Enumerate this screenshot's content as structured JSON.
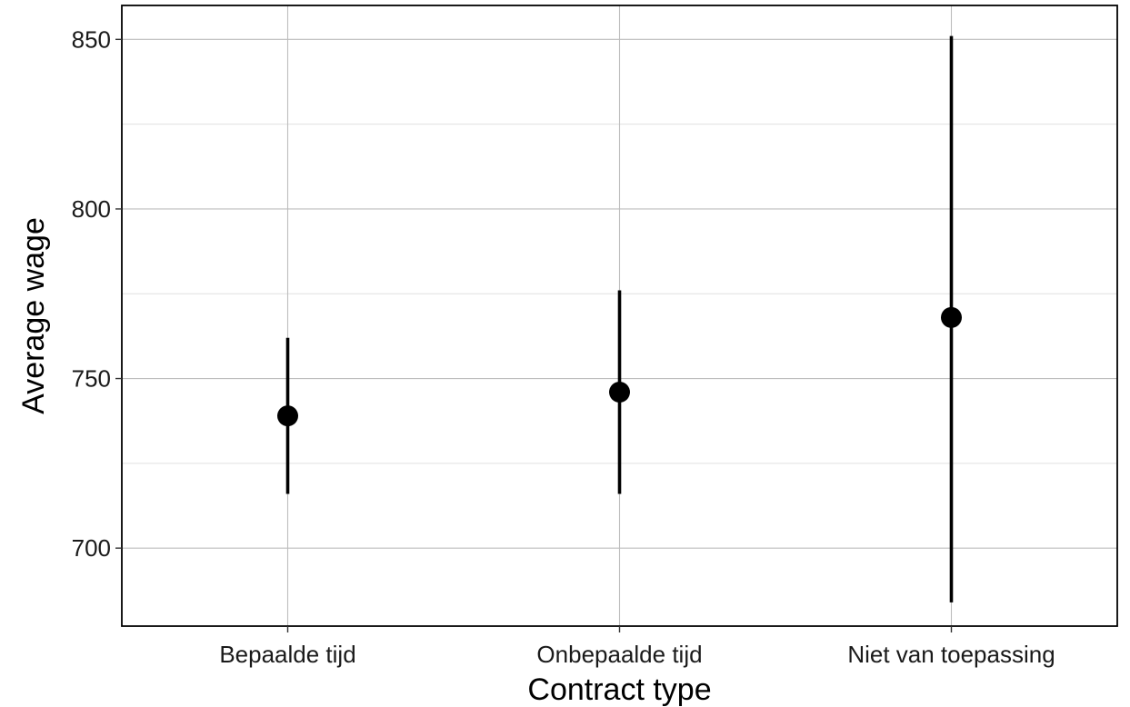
{
  "chart_data": {
    "type": "scatter",
    "title": "",
    "xlabel": "Contract type",
    "ylabel": "Average wage",
    "categories": [
      "Bepaalde tijd",
      "Onbepaalde tijd",
      "Niet van toepassing"
    ],
    "series": [
      {
        "values": [
          739,
          746,
          768
        ],
        "lower": [
          716,
          716,
          684
        ],
        "upper": [
          762,
          776,
          851
        ]
      }
    ],
    "ylim": [
      677,
      860
    ],
    "yticks": [
      700,
      750,
      800,
      850
    ],
    "ytick_labels": [
      "700",
      "750",
      "800",
      "850"
    ],
    "grid": true,
    "legend": "none",
    "colors": {
      "point": "#000000",
      "errorbar": "#000000",
      "grid_major": "#bdbdbd",
      "grid_minor": "#e0e0e0",
      "panel_border": "#000000"
    }
  }
}
